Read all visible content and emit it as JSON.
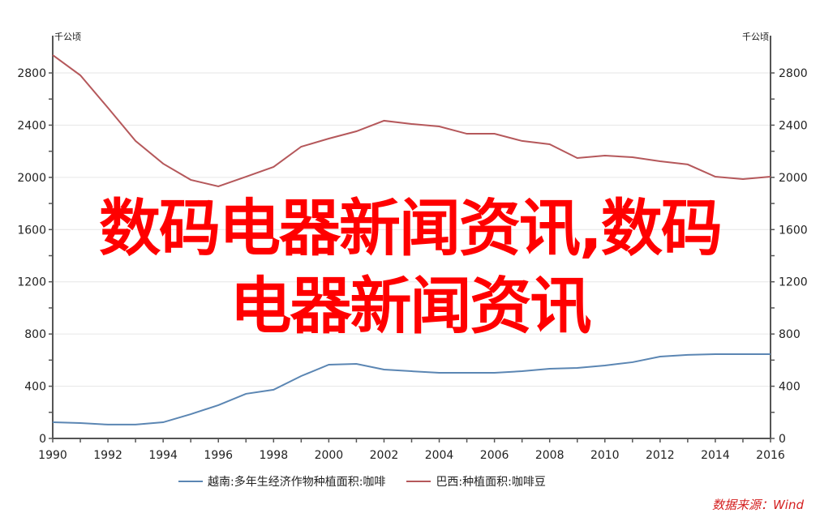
{
  "chart_data": {
    "type": "line",
    "x": [
      1990,
      1991,
      1992,
      1993,
      1994,
      1995,
      1996,
      1997,
      1998,
      1999,
      2000,
      2001,
      2002,
      2003,
      2004,
      2005,
      2006,
      2007,
      2008,
      2009,
      2010,
      2011,
      2012,
      2013,
      2014,
      2015,
      2016
    ],
    "series": [
      {
        "name": "越南:多年生经济作物种植面积:咖啡",
        "color": "#5b86b3",
        "values": [
          124,
          118,
          106,
          106,
          124,
          186,
          255,
          342,
          373,
          478,
          565,
          571,
          528,
          515,
          503,
          503,
          503,
          515,
          534,
          540,
          559,
          584,
          627,
          640,
          646,
          646,
          646
        ]
      },
      {
        "name": "巴西:种植面积:咖啡豆",
        "color": "#b5585b",
        "values": [
          2937,
          2782,
          2533,
          2279,
          2105,
          1981,
          1931,
          2005,
          2080,
          2235,
          2297,
          2353,
          2434,
          2409,
          2390,
          2334,
          2334,
          2279,
          2254,
          2148,
          2167,
          2154,
          2123,
          2099,
          2005,
          1987,
          2005
        ]
      }
    ],
    "xlim": [
      1990,
      2016
    ],
    "ylim": [
      0,
      2800
    ],
    "xticks": [
      "1990",
      "1992",
      "1994",
      "1996",
      "1998",
      "2000",
      "2002",
      "2004",
      "2006",
      "2008",
      "2010",
      "2012",
      "2014",
      "2016"
    ],
    "yticks": [
      "0",
      "400",
      "800",
      "1200",
      "1600",
      "2000",
      "2400",
      "2800"
    ],
    "ylabel_left": "千公顷",
    "ylabel_right": "千公顷",
    "grid": true,
    "legend": "bottom"
  },
  "source": "数据来源：Wind",
  "watermark": {
    "line1": "数码电器新闻资讯,数码",
    "line2": "电器新闻资讯",
    "color": "#ff0000"
  }
}
